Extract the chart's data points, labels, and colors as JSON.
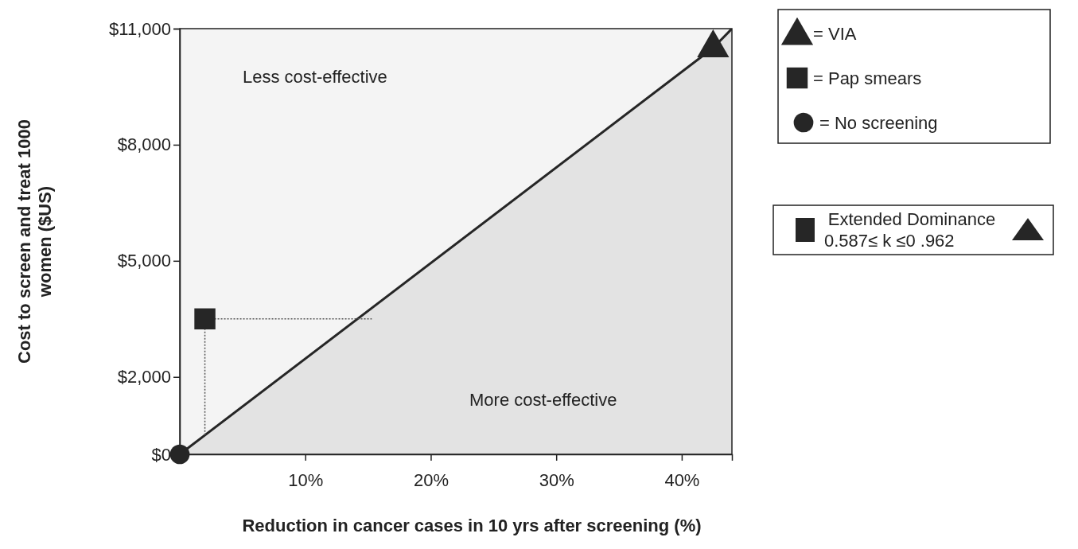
{
  "chart_data": {
    "type": "scatter",
    "xlabel": "Reduction in cancer cases in 10 yrs after screening (%)",
    "ylabel": "Cost to screen and treat 1000 women ($US)",
    "xlim": [
      0,
      44
    ],
    "ylim": [
      0,
      11000
    ],
    "xticks": [
      {
        "value": 10,
        "label": "10%"
      },
      {
        "value": 20,
        "label": "20%"
      },
      {
        "value": 30,
        "label": "30%"
      },
      {
        "value": 40,
        "label": "40%"
      }
    ],
    "yticks": [
      {
        "value": 0,
        "label": "$0"
      },
      {
        "value": 2000,
        "label": "$2,000"
      },
      {
        "value": 5000,
        "label": "$5,000"
      },
      {
        "value": 8000,
        "label": "$8,000"
      },
      {
        "value": 11000,
        "label": "$11,000"
      }
    ],
    "grid": false,
    "legend": "right",
    "series": [
      {
        "type": "area",
        "color": "#262626",
        "x": [
          0,
          42.5,
          44
        ],
        "values": [
          0,
          10500,
          11000
        ]
      },
      {
        "type": "line",
        "color": "#555555",
        "line_style": "dotted",
        "x": [
          2,
          15.3
        ],
        "values": [
          3500,
          3500
        ]
      },
      {
        "type": "line",
        "color": "#555555",
        "line_style": "dotted",
        "x": [
          2,
          2
        ],
        "values": [
          3500,
          490
        ]
      },
      {
        "name": "= VIA",
        "marker": "triangle",
        "color": "#262626",
        "x": [
          42.5
        ],
        "values": [
          10500
        ]
      },
      {
        "name": "= Pap smears",
        "marker": "square",
        "color": "#262626",
        "x": [
          2
        ],
        "values": [
          3500
        ]
      },
      {
        "name": "= No screening",
        "marker": "circle",
        "color": "#262626",
        "x": [
          0
        ],
        "values": [
          0
        ]
      }
    ],
    "annotations": [
      "Less cost-effective",
      "More cost-effective",
      "Extended Dominance",
      "0.587≤ k ≤0 .962"
    ]
  }
}
